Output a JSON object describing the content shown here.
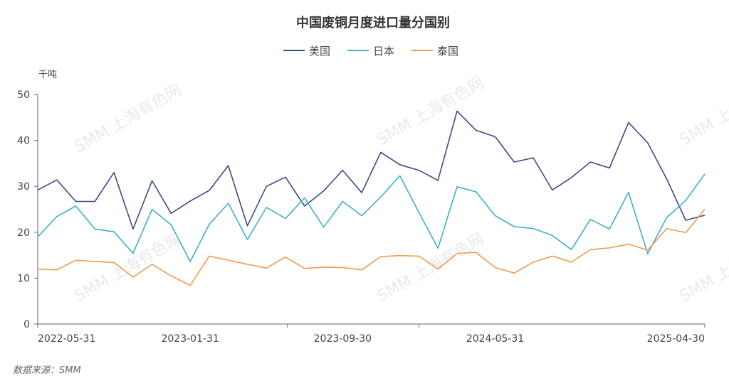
{
  "watermark": "SMM 上海有色网",
  "source": "数据来源：SMM",
  "chart_data": {
    "type": "line",
    "title": "中国废铜月度进口量分国别",
    "ylabel": "千吨",
    "ylim": [
      0,
      50
    ],
    "yticks": [
      0,
      10,
      20,
      30,
      40,
      50
    ],
    "grid": false,
    "legend_position": "top",
    "x_tick_labels": [
      "2022-05-31",
      "2023-01-31",
      "2023-09-30",
      "2024-05-31",
      "2025-04-30"
    ],
    "x": [
      "2022-05",
      "2022-06",
      "2022-07",
      "2022-08",
      "2022-09",
      "2022-10",
      "2022-11",
      "2022-12",
      "2023-01",
      "2023-02",
      "2023-03",
      "2023-04",
      "2023-05",
      "2023-06",
      "2023-07",
      "2023-08",
      "2023-09",
      "2023-10",
      "2023-11",
      "2023-12",
      "2024-01",
      "2024-02",
      "2024-03",
      "2024-04",
      "2024-05",
      "2024-06",
      "2024-07",
      "2024-08",
      "2024-09",
      "2024-10",
      "2024-11",
      "2024-12",
      "2025-01",
      "2025-02",
      "2025-03",
      "2025-04"
    ],
    "series": [
      {
        "name": "美国",
        "color": "#3d4a82",
        "values": [
          29.2,
          31.4,
          26.7,
          26.7,
          33.0,
          20.7,
          31.2,
          24.1,
          26.8,
          29.1,
          34.5,
          21.4,
          30.0,
          32.0,
          25.7,
          29.0,
          33.5,
          28.6,
          37.4,
          34.7,
          33.5,
          31.3,
          46.4,
          42.2,
          40.8,
          35.3,
          36.2,
          29.2,
          31.9,
          35.3,
          34.0,
          43.9,
          39.5,
          31.6,
          22.6,
          23.7
        ]
      },
      {
        "name": "日本",
        "color": "#3fb0c8",
        "values": [
          19.0,
          23.4,
          25.7,
          20.7,
          20.1,
          15.4,
          25.0,
          21.6,
          13.6,
          21.7,
          26.3,
          18.4,
          25.4,
          23.0,
          27.5,
          21.1,
          26.7,
          23.6,
          27.7,
          32.3,
          24.3,
          16.5,
          29.9,
          28.8,
          23.6,
          21.2,
          20.8,
          19.3,
          16.2,
          22.8,
          20.7,
          28.7,
          15.3,
          23.2,
          26.9,
          32.7
        ]
      },
      {
        "name": "泰国",
        "color": "#f19a50",
        "values": [
          12.0,
          11.8,
          13.9,
          13.6,
          13.4,
          10.2,
          13.0,
          10.5,
          8.4,
          14.8,
          13.9,
          13.0,
          12.2,
          14.6,
          12.1,
          12.4,
          12.3,
          11.8,
          14.7,
          14.9,
          14.8,
          12.0,
          15.4,
          15.6,
          12.3,
          11.1,
          13.5,
          14.8,
          13.5,
          16.2,
          16.6,
          17.4,
          16.1,
          20.8,
          19.9,
          25.0
        ]
      }
    ]
  }
}
